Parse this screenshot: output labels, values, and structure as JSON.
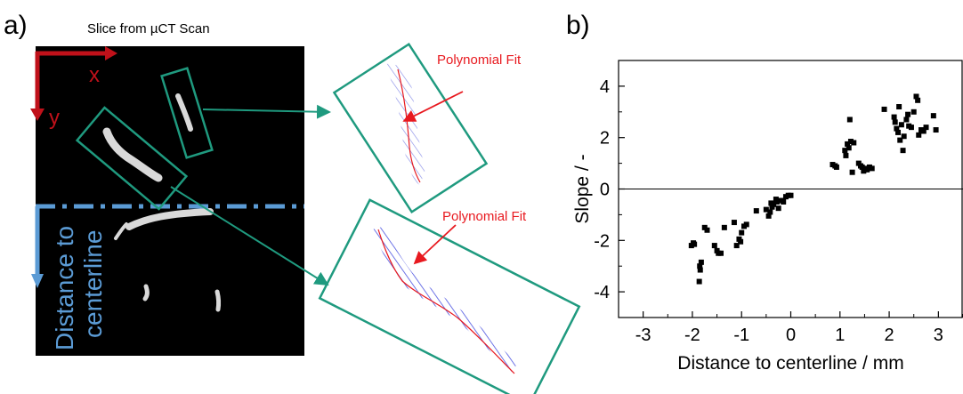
{
  "panel_a": {
    "label": "a)",
    "caption": "Slice from µCT Scan",
    "x_axis_letter": "x",
    "y_axis_letter": "y",
    "centerline_line1": "Distance to",
    "centerline_line2": "centerline",
    "fit_label_top": "Polynomial Fit",
    "fit_label_bottom": "Polynomial Fit",
    "colors": {
      "scan_background": "#000000",
      "fiber": "#d9d9d9",
      "arrow_red": "#c0111a",
      "centerline_blue": "#5b9bd5",
      "box_teal": "#1f9a7f",
      "fit_red": "#e8191f",
      "hatch_blue": "#4a52e0"
    }
  },
  "panel_b": {
    "label": "b)"
  },
  "chart_data": {
    "type": "scatter",
    "xlabel": "Distance to centerline / mm",
    "ylabel": "Slope / -",
    "xlim": [
      -3.5,
      3.5
    ],
    "ylim": [
      -5,
      5
    ],
    "xticks": [
      -3,
      -2,
      -1,
      0,
      1,
      2,
      3
    ],
    "yticks": [
      -4,
      -2,
      0,
      2,
      4
    ],
    "zero_line": true,
    "grid": false,
    "marker": "square",
    "marker_color": "#000000",
    "series": [
      {
        "points": [
          [
            -2.02,
            -2.2
          ],
          [
            -1.98,
            -2.1
          ],
          [
            -1.96,
            -2.15
          ],
          [
            -1.85,
            -3.0
          ],
          [
            -1.82,
            -2.85
          ],
          [
            -1.86,
            -3.6
          ],
          [
            -1.84,
            -3.15
          ],
          [
            -1.75,
            -1.5
          ],
          [
            -1.7,
            -1.6
          ],
          [
            -1.55,
            -2.2
          ],
          [
            -1.5,
            -2.4
          ],
          [
            -1.47,
            -2.5
          ],
          [
            -1.42,
            -2.5
          ],
          [
            -1.35,
            -1.5
          ],
          [
            -1.15,
            -1.3
          ],
          [
            -1.1,
            -2.2
          ],
          [
            -1.05,
            -1.95
          ],
          [
            -1.02,
            -2.05
          ],
          [
            -1.0,
            -1.7
          ],
          [
            -0.95,
            -1.45
          ],
          [
            -0.9,
            -1.38
          ],
          [
            -0.7,
            -0.85
          ],
          [
            -0.5,
            -0.8
          ],
          [
            -0.45,
            -1.05
          ],
          [
            -0.42,
            -0.9
          ],
          [
            -0.4,
            -0.55
          ],
          [
            -0.38,
            -0.7
          ],
          [
            -0.35,
            -0.6
          ],
          [
            -0.3,
            -0.4
          ],
          [
            -0.28,
            -0.5
          ],
          [
            -0.25,
            -0.75
          ],
          [
            -0.2,
            -0.45
          ],
          [
            -0.15,
            -0.5
          ],
          [
            -0.1,
            -0.3
          ],
          [
            -0.05,
            -0.25
          ],
          [
            0.0,
            -0.25
          ],
          [
            0.85,
            0.95
          ],
          [
            0.9,
            0.9
          ],
          [
            0.93,
            0.85
          ],
          [
            1.1,
            1.5
          ],
          [
            1.12,
            1.3
          ],
          [
            1.15,
            1.75
          ],
          [
            1.18,
            1.6
          ],
          [
            1.2,
            2.7
          ],
          [
            1.22,
            1.85
          ],
          [
            1.25,
            0.65
          ],
          [
            1.28,
            1.8
          ],
          [
            1.38,
            1.0
          ],
          [
            1.42,
            0.9
          ],
          [
            1.45,
            0.85
          ],
          [
            1.48,
            0.7
          ],
          [
            1.52,
            0.8
          ],
          [
            1.55,
            0.75
          ],
          [
            1.6,
            0.85
          ],
          [
            1.65,
            0.8
          ],
          [
            1.9,
            3.1
          ],
          [
            2.1,
            2.8
          ],
          [
            2.12,
            2.6
          ],
          [
            2.15,
            2.35
          ],
          [
            2.18,
            2.2
          ],
          [
            2.2,
            3.2
          ],
          [
            2.22,
            1.9
          ],
          [
            2.25,
            2.5
          ],
          [
            2.28,
            1.5
          ],
          [
            2.3,
            2.05
          ],
          [
            2.35,
            2.7
          ],
          [
            2.38,
            2.9
          ],
          [
            2.4,
            2.45
          ],
          [
            2.45,
            2.4
          ],
          [
            2.5,
            3.0
          ],
          [
            2.55,
            3.6
          ],
          [
            2.58,
            3.45
          ],
          [
            2.6,
            2.1
          ],
          [
            2.65,
            2.3
          ],
          [
            2.7,
            2.25
          ],
          [
            2.75,
            2.4
          ],
          [
            2.9,
            2.85
          ],
          [
            2.95,
            2.3
          ]
        ]
      }
    ]
  }
}
